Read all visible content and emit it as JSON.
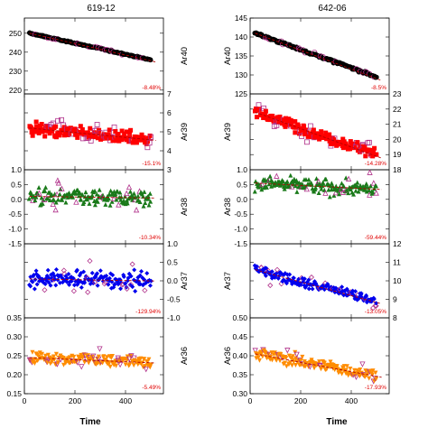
{
  "chart_data": {
    "type": "scatter",
    "columns": [
      {
        "title": "619-12",
        "xlabel": "Time",
        "xlim": [
          0,
          550
        ],
        "xticks": [
          "0",
          "200",
          "400"
        ]
      },
      {
        "title": "642-06",
        "xlabel": "Time",
        "xlim": [
          0,
          550
        ],
        "xticks": [
          "0",
          "200",
          "400"
        ]
      }
    ],
    "row_labels": [
      "Ar40",
      "Ar39",
      "Ar38",
      "Ar37",
      "Ar36"
    ],
    "panels": [
      {
        "col": 0,
        "row": 0,
        "name": "Ar40",
        "ylim": [
          218,
          258
        ],
        "yticks": [
          220,
          230,
          240,
          250
        ],
        "y_axis": "left",
        "start": 250,
        "end": 236,
        "noise": 0.3,
        "marker": "circle",
        "color": "#000000",
        "outlier_color": "#b0308a",
        "annotation": "-8.48%"
      },
      {
        "col": 0,
        "row": 1,
        "name": "Ar39",
        "ylim": [
          3,
          7
        ],
        "yticks": [
          3,
          4,
          5,
          6,
          7
        ],
        "y_axis": "right",
        "start": 5.2,
        "end": 4.6,
        "noise": 0.32,
        "marker": "square",
        "color": "#ff0000",
        "outlier_color": "#b0308a",
        "annotation": "-15.1%"
      },
      {
        "col": 0,
        "row": 2,
        "name": "Ar38",
        "ylim": [
          -1.5,
          1.0
        ],
        "yticks": [
          -1.5,
          -1.0,
          -0.5,
          0,
          0.5,
          1.0
        ],
        "y_axis": "left",
        "start": 0.1,
        "end": 0.05,
        "noise": 0.28,
        "marker": "triangle",
        "color": "#1a7a1a",
        "outlier_color": "#b0308a",
        "annotation": "-10.34%"
      },
      {
        "col": 0,
        "row": 3,
        "name": "Ar37",
        "ylim": [
          -1.0,
          1.0
        ],
        "yticks": [
          -1.0,
          -0.5,
          0,
          0.5,
          1.0
        ],
        "y_axis": "right",
        "start": 0.05,
        "end": 0.0,
        "noise": 0.22,
        "marker": "diamond",
        "color": "#0000ee",
        "outlier_color": "#b0308a",
        "annotation": "-129.94%"
      },
      {
        "col": 0,
        "row": 4,
        "name": "Ar36",
        "ylim": [
          0.15,
          0.35
        ],
        "yticks": [
          0.15,
          0.2,
          0.25,
          0.3,
          0.35
        ],
        "y_axis": "left",
        "start": 0.245,
        "end": 0.232,
        "noise": 0.015,
        "marker": "triangle-down",
        "color": "#ff8c00",
        "outlier_color": "#b0308a",
        "annotation": "-5.49%"
      },
      {
        "col": 1,
        "row": 0,
        "name": "Ar40",
        "ylim": [
          125,
          145
        ],
        "yticks": [
          125,
          130,
          135,
          140,
          145
        ],
        "y_axis": "left",
        "start": 141,
        "end": 129.5,
        "noise": 0.3,
        "marker": "circle",
        "color": "#000000",
        "outlier_color": "#b0308a",
        "annotation": "-8.5%"
      },
      {
        "col": 1,
        "row": 1,
        "name": "Ar39",
        "ylim": [
          18,
          23
        ],
        "yticks": [
          18,
          19,
          20,
          21,
          22,
          23
        ],
        "y_axis": "right",
        "start": 21.8,
        "end": 19.0,
        "noise": 0.35,
        "marker": "square",
        "color": "#ff0000",
        "outlier_color": "#b0308a",
        "annotation": "-14.28%"
      },
      {
        "col": 1,
        "row": 2,
        "name": "Ar38",
        "ylim": [
          -1.5,
          1.0
        ],
        "yticks": [
          -1.5,
          -1.0,
          -0.5,
          0,
          0.5,
          1.0
        ],
        "y_axis": "left",
        "start": 0.55,
        "end": 0.35,
        "noise": 0.25,
        "marker": "triangle",
        "color": "#1a7a1a",
        "outlier_color": "#b0308a",
        "annotation": "-59.44%"
      },
      {
        "col": 1,
        "row": 3,
        "name": "Ar37",
        "ylim": [
          8,
          12
        ],
        "yticks": [
          8,
          9,
          10,
          11,
          12
        ],
        "y_axis": "right",
        "start": 10.6,
        "end": 8.9,
        "noise": 0.25,
        "marker": "diamond",
        "color": "#0000ee",
        "outlier_color": "#b0308a",
        "annotation": "-13.05%"
      },
      {
        "col": 1,
        "row": 4,
        "name": "Ar36",
        "ylim": [
          0.3,
          0.5
        ],
        "yticks": [
          0.3,
          0.35,
          0.4,
          0.45,
          0.5
        ],
        "y_axis": "left",
        "start": 0.405,
        "end": 0.348,
        "noise": 0.016,
        "marker": "triangle-down",
        "color": "#ff8c00",
        "outlier_color": "#b0308a",
        "annotation": "-17.93%"
      }
    ]
  }
}
